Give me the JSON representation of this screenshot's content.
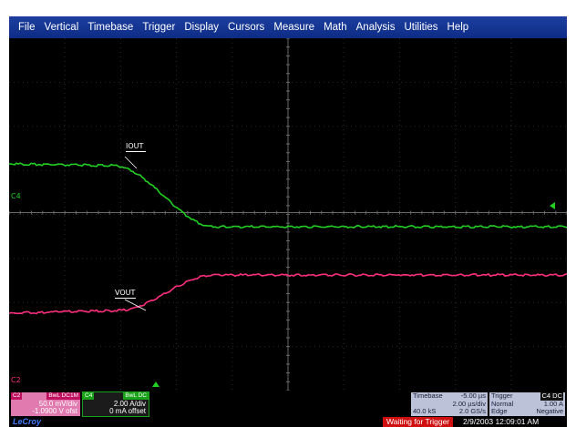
{
  "menu": [
    "File",
    "Vertical",
    "Timebase",
    "Trigger",
    "Display",
    "Cursors",
    "Measure",
    "Math",
    "Analysis",
    "Utilities",
    "Help"
  ],
  "traces": {
    "iout": {
      "label": "IOUT",
      "color": "#22d022"
    },
    "vout": {
      "label": "VOUT",
      "color": "#ff2f7f"
    }
  },
  "channel_markers": {
    "c4": "C4",
    "c2": "C2"
  },
  "ch2_desc": {
    "tag": "C2",
    "coupling": "BwL DC1M",
    "scale": "50.0 mV/div",
    "offset": "-1.0900 V ofst",
    "color": "#e03f8f"
  },
  "ch4_desc": {
    "tag": "C4",
    "coupling": "BwL DC",
    "scale": "2.00 A/div",
    "offset": "0 mA offset",
    "color": "#1aa21a"
  },
  "timebase": {
    "label": "Timebase",
    "delay": "-5.00 µs",
    "per_div": "2.00 µs/div",
    "samples": "40.0 kS",
    "rate": "2.0 GS/s"
  },
  "trigger": {
    "label": "Trigger",
    "channel": "C4 DC",
    "mode": "Normal",
    "level": "1.00 A",
    "type": "Edge",
    "slope": "Negative"
  },
  "status": {
    "waiting": "Waiting for Trigger",
    "datetime": "2/9/2003 12:09:01 AM",
    "logo": "LeCroy"
  }
}
